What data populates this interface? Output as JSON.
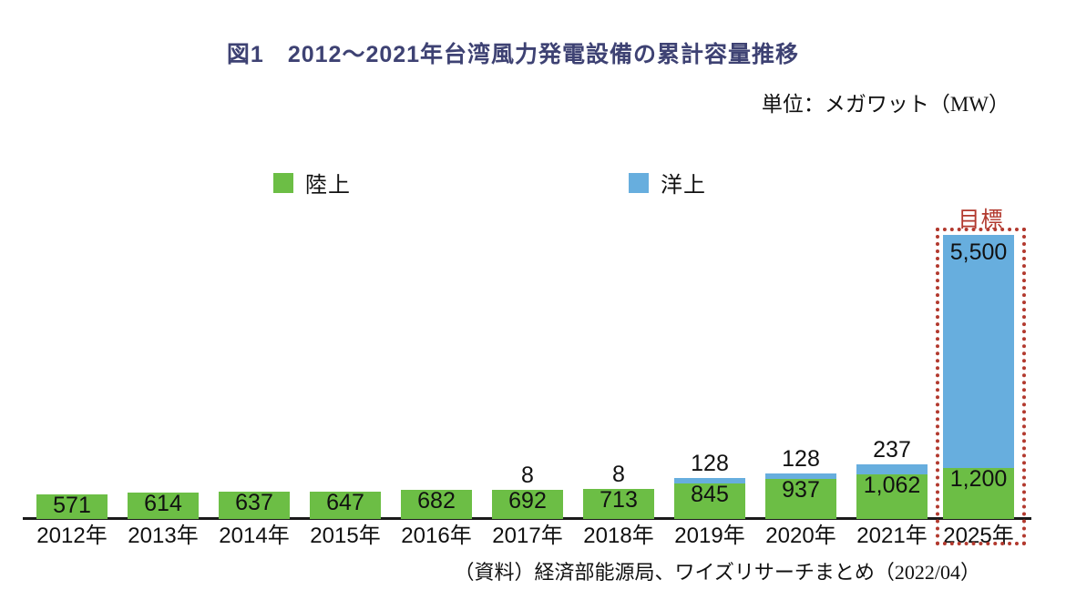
{
  "header": {
    "title": "図1　2012〜2021年台湾風力発電設備の累計容量推移",
    "unit": "単位：メガワット（MW）"
  },
  "legend": {
    "onshore": "陸上",
    "offshore": "洋上"
  },
  "target": {
    "label": "目標"
  },
  "footer": {
    "source": "（資料）経済部能源局、ワイズリサーチまとめ（2022/04）"
  },
  "colors": {
    "onshore_green": "#6CBE45",
    "offshore_blue": "#67AEDE",
    "target_red": "#B2392E",
    "title_navy": "#3E4273",
    "axis_black": "#1a1a1a"
  },
  "chart_data": {
    "type": "bar",
    "stacked": true,
    "title": "図1　2012〜2021年台湾風力発電設備の累計容量推移",
    "ylabel": "メガワット（MW）",
    "xlabel": "",
    "grid": false,
    "legend_position": "top",
    "value_labels_shown": true,
    "categories": [
      "2012年",
      "2013年",
      "2014年",
      "2015年",
      "2016年",
      "2017年",
      "2018年",
      "2019年",
      "2020年",
      "2021年",
      "2025年"
    ],
    "series": [
      {
        "name": "陸上",
        "color": "#6CBE45",
        "values": [
          571,
          614,
          637,
          647,
          682,
          692,
          713,
          845,
          937,
          1062,
          1200
        ]
      },
      {
        "name": "洋上",
        "color": "#67AEDE",
        "values": [
          0,
          0,
          0,
          0,
          0,
          8,
          8,
          128,
          128,
          237,
          5500
        ]
      }
    ],
    "annotations": [
      {
        "text": "目標",
        "category": "2025年",
        "style": "red-dotted-box"
      }
    ],
    "ylim": [
      0,
      6700
    ]
  }
}
